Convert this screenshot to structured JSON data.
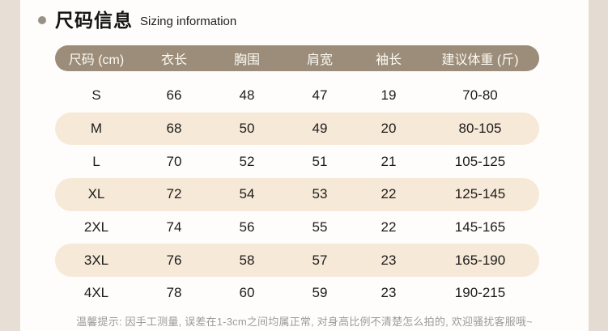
{
  "page": {
    "title_cn": "尺码信息",
    "title_en": "Sizing information",
    "footer_note": "温馨提示: 因手工测量, 误差在1-3cm之间均属正常, 对身高比例不清楚怎么拍的, 欢迎骚扰客服哦~"
  },
  "colors": {
    "header_pill": "#9b8d79",
    "row_cream": "#f7e9d7",
    "edge_strip": "#e7dfd5",
    "header_text": "#fdfaf4",
    "body_text": "#1c1c1c",
    "footer_gray": "#9b9b9b",
    "bullet": "#9a9186"
  },
  "chart_data": {
    "type": "table",
    "title": "尺码信息 Sizing information",
    "headers": [
      "尺码 (cm)",
      "衣长",
      "胸围",
      "肩宽",
      "袖长",
      "建议体重 (斤)"
    ],
    "rows": [
      [
        "S",
        "66",
        "48",
        "47",
        "19",
        "70-80"
      ],
      [
        "M",
        "68",
        "50",
        "49",
        "20",
        "80-105"
      ],
      [
        "L",
        "70",
        "52",
        "51",
        "21",
        "105-125"
      ],
      [
        "XL",
        "72",
        "54",
        "53",
        "22",
        "125-145"
      ],
      [
        "2XL",
        "74",
        "56",
        "55",
        "22",
        "145-165"
      ],
      [
        "3XL",
        "76",
        "58",
        "57",
        "23",
        "165-190"
      ],
      [
        "4XL",
        "78",
        "60",
        "59",
        "23",
        "190-215"
      ]
    ]
  }
}
